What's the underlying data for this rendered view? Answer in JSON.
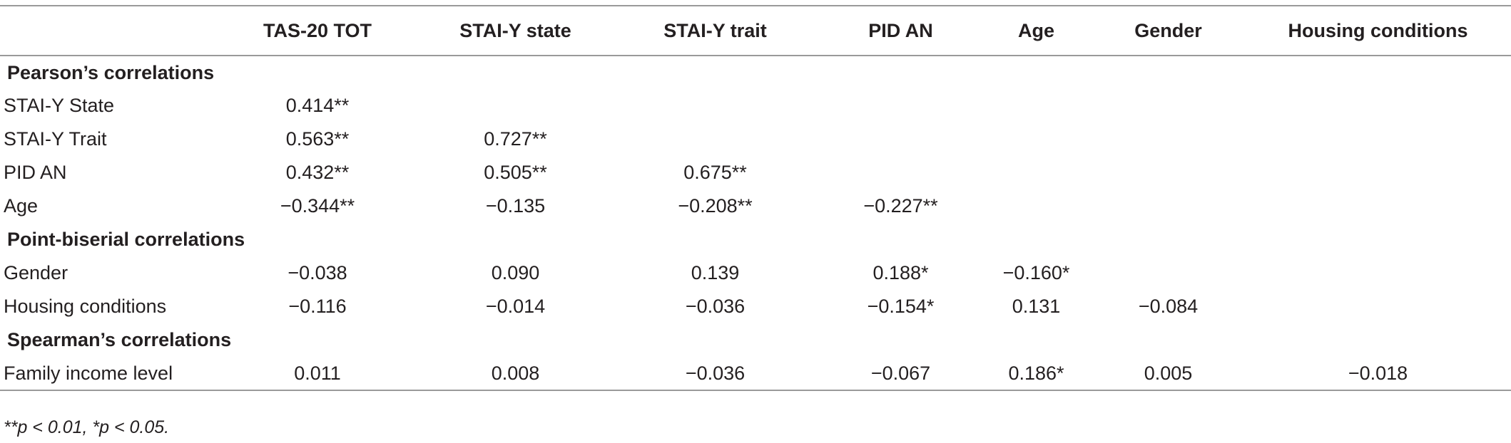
{
  "table": {
    "columns": [
      "",
      "TAS-20 TOT",
      "STAI-Y state",
      "STAI-Y trait",
      "PID AN",
      "Age",
      "Gender",
      "Housing conditions"
    ],
    "sections": [
      {
        "title": "Pearson’s correlations",
        "rows": [
          [
            "STAI-Y State",
            "0.414**",
            "",
            "",
            "",
            "",
            "",
            ""
          ],
          [
            "STAI-Y Trait",
            "0.563**",
            "0.727**",
            "",
            "",
            "",
            "",
            ""
          ],
          [
            "PID AN",
            "0.432**",
            "0.505**",
            "0.675**",
            "",
            "",
            "",
            ""
          ],
          [
            "Age",
            "−0.344**",
            "−0.135",
            "−0.208**",
            "−0.227**",
            "",
            "",
            ""
          ]
        ]
      },
      {
        "title": "Point-biserial correlations",
        "rows": [
          [
            "Gender",
            "−0.038",
            "0.090",
            "0.139",
            "0.188*",
            "−0.160*",
            "",
            ""
          ],
          [
            "Housing conditions",
            "−0.116",
            "−0.014",
            "−0.036",
            "−0.154*",
            "0.131",
            "−0.084",
            ""
          ]
        ]
      },
      {
        "title": "Spearman’s correlations",
        "rows": [
          [
            "Family income level",
            "0.011",
            "0.008",
            "−0.036",
            "−0.067",
            "0.186*",
            "0.005",
            "−0.018"
          ]
        ]
      }
    ],
    "footnote": "**p < 0.01, *p < 0.05."
  }
}
